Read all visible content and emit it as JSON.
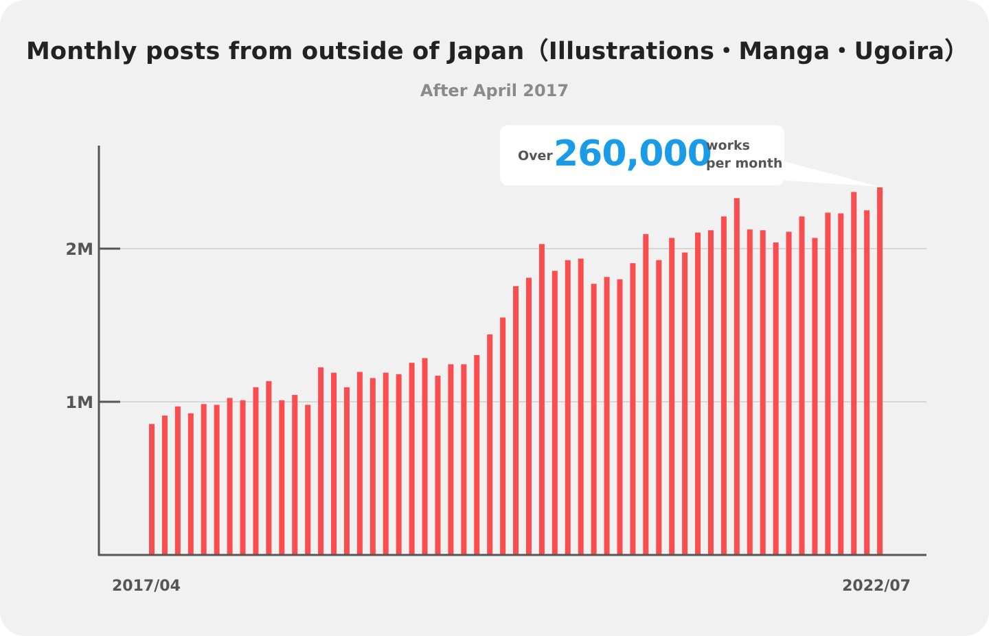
{
  "title": "Monthly posts from outside of Japan（Illustrations・Manga・Ugoira）",
  "subtitle": "After April 2017",
  "callout": {
    "prefix": "Over",
    "number": "260,000",
    "unit_line1": "works",
    "unit_line2": "per month"
  },
  "colors": {
    "background": "#f1f1f1",
    "bar": "#fa4d50",
    "callout_number": "#1a9be8",
    "axis": "#555555",
    "gridline": "#d6d6d6"
  },
  "chart_data": {
    "type": "bar",
    "xlabel": "",
    "ylabel": "",
    "x_start_label": "2017/04",
    "x_end_label": "2022/07",
    "ylim": [
      0,
      2600000
    ],
    "y_ticks": [
      {
        "value": 1000000,
        "label": "1M"
      },
      {
        "value": 2000000,
        "label": "2M"
      }
    ],
    "grid": true,
    "values": [
      855000,
      910000,
      970000,
      925000,
      985000,
      980000,
      1025000,
      1010000,
      1095000,
      1135000,
      1010000,
      1045000,
      980000,
      1225000,
      1190000,
      1095000,
      1195000,
      1155000,
      1190000,
      1180000,
      1255000,
      1285000,
      1170000,
      1245000,
      1245000,
      1305000,
      1440000,
      1550000,
      1755000,
      1810000,
      2030000,
      1855000,
      1925000,
      1935000,
      1770000,
      1815000,
      1800000,
      1905000,
      2095000,
      1925000,
      2070000,
      1975000,
      2105000,
      2120000,
      2210000,
      2330000,
      2125000,
      2120000,
      2040000,
      2110000,
      2210000,
      2070000,
      2235000,
      2230000,
      2370000,
      2250000,
      2400000
    ]
  }
}
